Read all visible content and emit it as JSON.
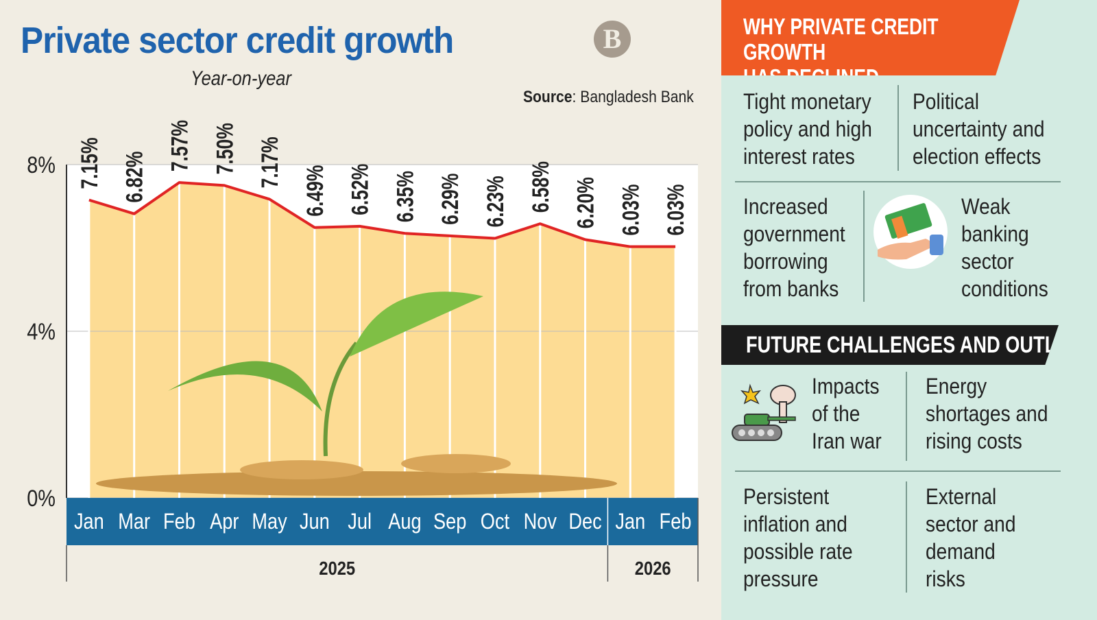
{
  "header": {
    "title": "Private sector credit growth",
    "subtitle": "Year-on-year",
    "source_label": "Source",
    "source_value": ": Bangladesh Bank",
    "logo_text": "B"
  },
  "chart_data": {
    "type": "area",
    "categories": [
      "Jan",
      "Mar",
      "Feb",
      "Apr",
      "May",
      "Jun",
      "Jul",
      "Aug",
      "Sep",
      "Oct",
      "Nov",
      "Dec",
      "Jan",
      "Feb"
    ],
    "years": [
      {
        "label": "2025",
        "span": 12
      },
      {
        "label": "2026",
        "span": 2
      }
    ],
    "values": [
      7.15,
      6.82,
      7.57,
      7.5,
      7.17,
      6.49,
      6.52,
      6.35,
      6.29,
      6.23,
      6.58,
      6.2,
      6.03,
      6.03
    ],
    "data_labels": [
      "7.15%",
      "6.82%",
      "7.57%",
      "7.50%",
      "7.17%",
      "6.49%",
      "6.52%",
      "6.35%",
      "6.29%",
      "6.23%",
      "6.58%",
      "6.20%",
      "6.03%",
      "6.03%"
    ],
    "yticks": [
      "0%",
      "4%",
      "8%"
    ],
    "ytick_values": [
      0,
      4,
      8
    ],
    "ylim": [
      0,
      8
    ],
    "grid": true,
    "colors": {
      "line": "#e02424",
      "fill": "#fddc94",
      "axis_band": "#1b6a9c"
    }
  },
  "reasons": {
    "heading": "WHY PRIVATE CREDIT GROWTH\nHAS DECLINED",
    "items": [
      "Tight monetary\npolicy and high\ninterest rates",
      "Political\nuncertainty and\nelection effects",
      "Increased\ngovernment\nborrowing\nfrom banks",
      "Weak\nbanking\nsector\nconditions"
    ]
  },
  "outlook": {
    "heading": "FUTURE CHALLENGES AND OUTLOOK",
    "items": [
      "Impacts\nof the\nIran war",
      "Energy\nshortages and\nrising costs",
      "Persistent\ninflation and\npossible rate\npressure",
      "External\nsector and\ndemand\nrisks"
    ]
  },
  "icons": [
    "money-hand-icon",
    "tank-explosion-icon"
  ]
}
